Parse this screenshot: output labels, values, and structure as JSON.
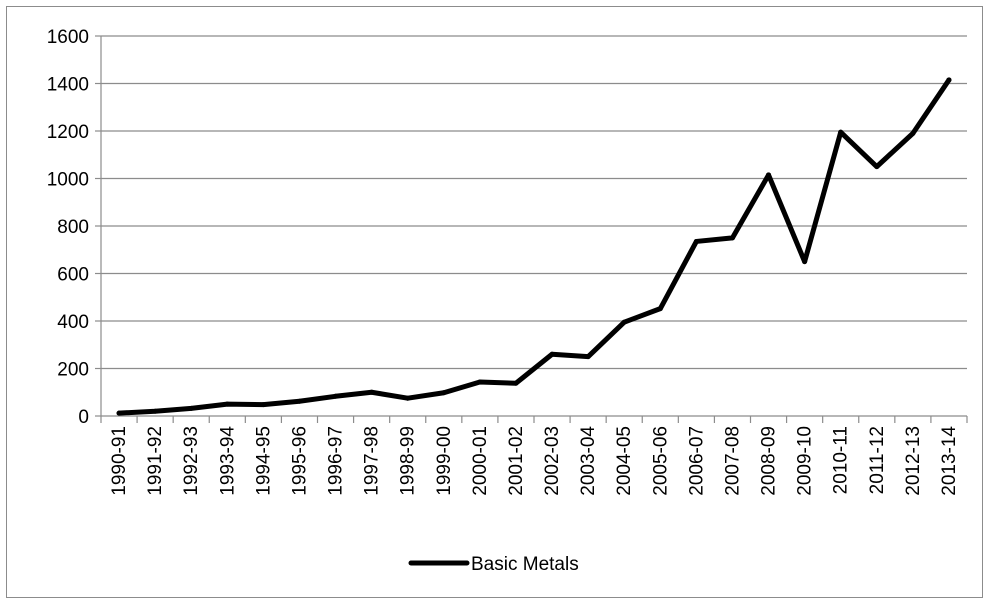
{
  "chart_data": {
    "type": "line",
    "title": "",
    "xlabel": "",
    "ylabel": "",
    "ylim": [
      0,
      1600
    ],
    "yticks": [
      0,
      200,
      400,
      600,
      800,
      1000,
      1200,
      1400,
      1600
    ],
    "grid": true,
    "legend_position": "bottom",
    "categories": [
      "1990-91",
      "1991-92",
      "1992-93",
      "1993-94",
      "1994-95",
      "1995-96",
      "1996-97",
      "1997-98",
      "1998-99",
      "1999-00",
      "2000-01",
      "2001-02",
      "2002-03",
      "2003-04",
      "2004-05",
      "2005-06",
      "2006-07",
      "2007-08",
      "2008-09",
      "2009-10",
      "2010-11",
      "2011-12",
      "2012-13",
      "2013-14"
    ],
    "series": [
      {
        "name": "Basic Metals",
        "color": "#000000",
        "values": [
          12,
          20,
          32,
          50,
          48,
          62,
          83,
          100,
          75,
          98,
          143,
          138,
          260,
          250,
          395,
          452,
          735,
          750,
          1015,
          650,
          1195,
          1050,
          1190,
          1415
        ]
      }
    ]
  }
}
